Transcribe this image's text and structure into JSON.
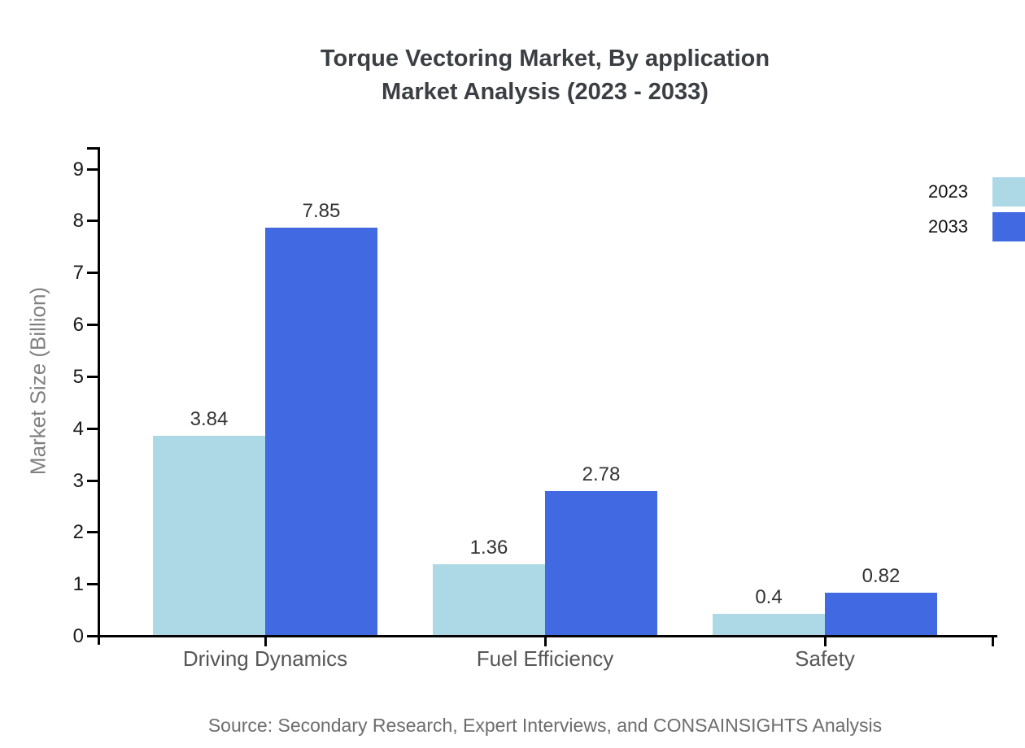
{
  "title": {
    "line1": "Torque Vectoring Market, By application",
    "line2": "Market Analysis (2023 - 2033)"
  },
  "chart_data": {
    "type": "bar",
    "categories": [
      "Driving Dynamics",
      "Fuel Efficiency",
      "Safety"
    ],
    "series": [
      {
        "name": "2023",
        "color": "#ADD8E6",
        "values": [
          3.84,
          1.36,
          0.4
        ]
      },
      {
        "name": "2033",
        "color": "#4169E1",
        "values": [
          7.85,
          2.78,
          0.82
        ]
      }
    ],
    "value_labels": [
      [
        "3.84",
        "1.36",
        "0.4"
      ],
      [
        "7.85",
        "2.78",
        "0.82"
      ]
    ],
    "title": "Torque Vectoring Market, By application Market Analysis (2023 - 2033)",
    "xlabel": "",
    "ylabel": "Market Size (Billion)",
    "ylim": [
      0,
      9.4
    ],
    "yticks": [
      0,
      1,
      2,
      3,
      4,
      5,
      6,
      7,
      8,
      9
    ],
    "grid": false,
    "legend_position": "top-right",
    "axis_color": "#000000"
  },
  "source": "Source: Secondary Research, Expert Interviews, and CONSAINSIGHTS Analysis"
}
